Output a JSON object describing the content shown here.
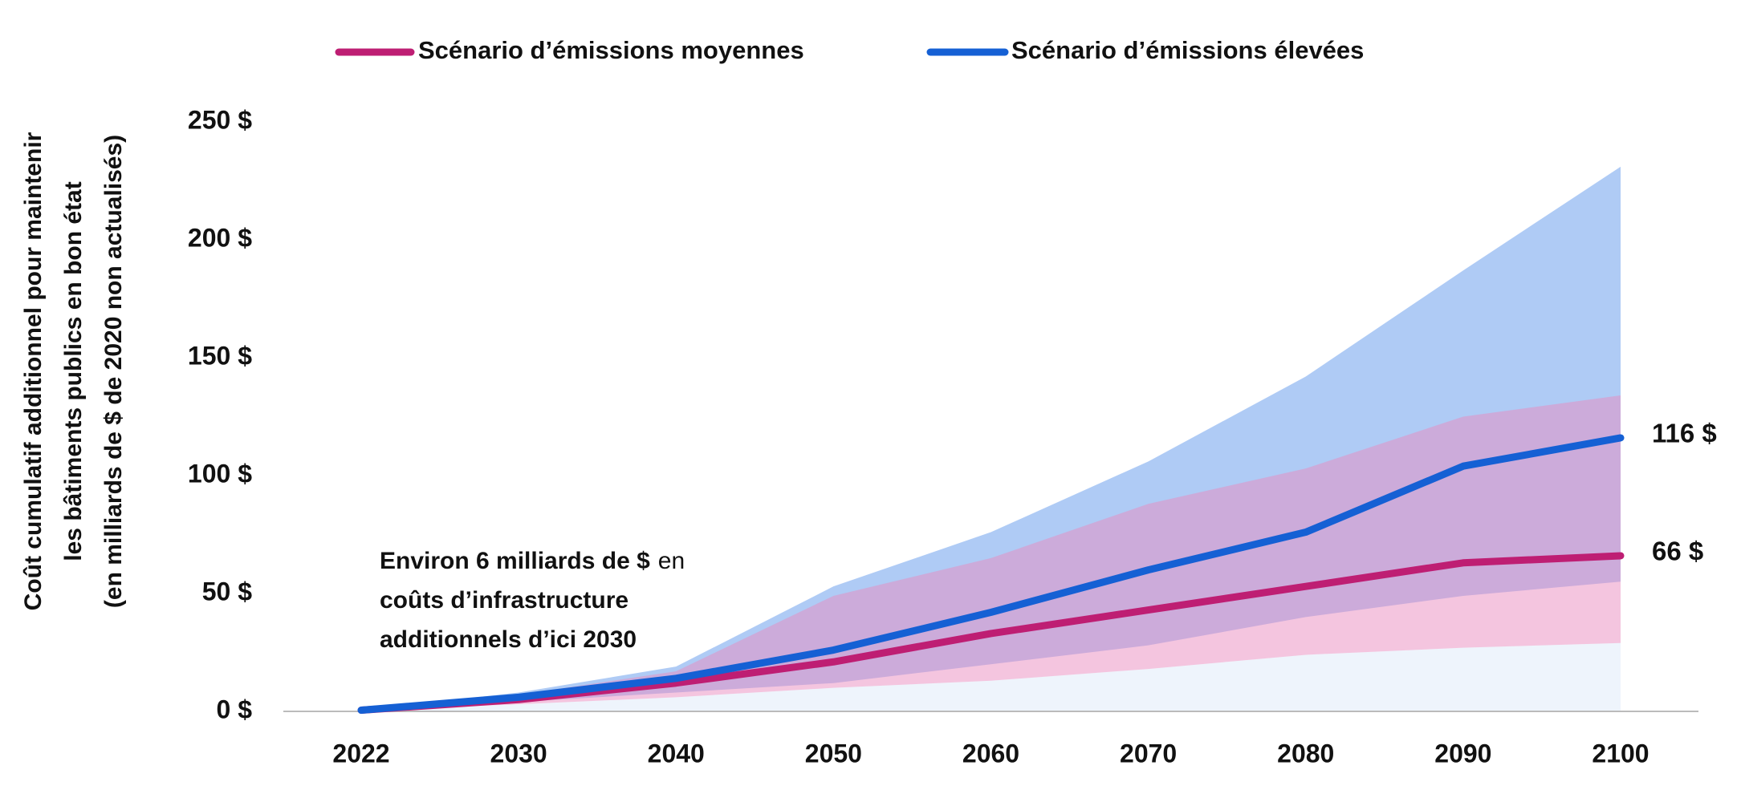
{
  "chart_data": {
    "type": "line",
    "categories": [
      "2022",
      "2030",
      "2040",
      "2050",
      "2060",
      "2070",
      "2080",
      "2090",
      "2100"
    ],
    "ylabel": [
      "Coût cumulatif additionnel pour maintenir",
      "les bâtiments publics en bon état",
      "(en milliards de $ de 2020 non actualisés)"
    ],
    "annotation": {
      "bold": "Environ 6 milliards de $",
      "lines": [
        "en",
        "coûts d’infrastructure",
        "additionnels d’ici 2030"
      ]
    },
    "ylim": [
      0,
      250
    ],
    "yticks": [
      {
        "value": 0,
        "label": "0 $"
      },
      {
        "value": 50,
        "label": "50 $"
      },
      {
        "value": 100,
        "label": "100 $"
      },
      {
        "value": 150,
        "label": "150 $"
      },
      {
        "value": 200,
        "label": "200 $"
      },
      {
        "value": 250,
        "label": "250 $"
      }
    ],
    "series": [
      {
        "name": "Scénario d’émissions moyennes",
        "color": "#be1e73",
        "band_color": "#e98cc0",
        "values": [
          0.5,
          5,
          12,
          21,
          33,
          43,
          53,
          63,
          66
        ],
        "value_labels": [
          null,
          null,
          null,
          null,
          null,
          null,
          null,
          null,
          "66 $"
        ],
        "lower": [
          0.5,
          3,
          6,
          10,
          13,
          18,
          24,
          27,
          29
        ],
        "upper": [
          0.5,
          7,
          17,
          49,
          65,
          88,
          103,
          125,
          134
        ]
      },
      {
        "name": "Scénario d’émissions élevées",
        "color": "#1560d4",
        "band_color": "#afcbf5",
        "values": [
          0.5,
          6,
          14,
          26,
          42,
          60,
          76,
          104,
          116
        ],
        "value_labels": [
          null,
          null,
          null,
          null,
          null,
          null,
          null,
          null,
          "116 $"
        ],
        "lower": [
          0.5,
          4,
          8,
          12,
          20,
          28,
          40,
          49,
          55
        ],
        "upper": [
          0.5,
          8,
          19,
          53,
          76,
          106,
          142,
          187,
          231
        ]
      }
    ]
  }
}
